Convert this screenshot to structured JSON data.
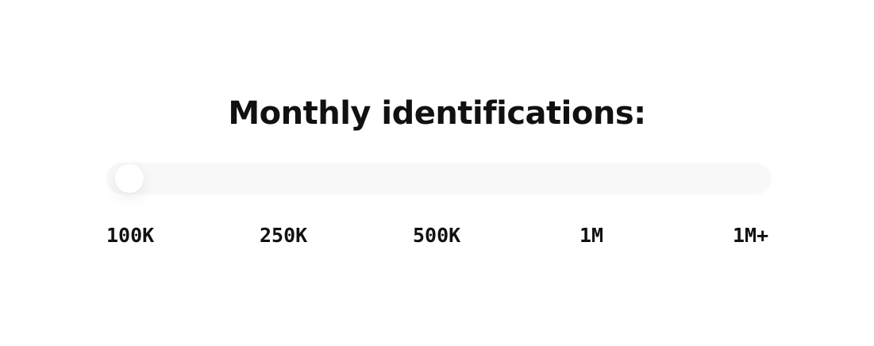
{
  "title": "Monthly identifications:",
  "slider": {
    "value_index": 0,
    "selected": "100K",
    "track_color": "#f8f8f8",
    "thumb_color": "#ffffff",
    "labels": [
      "100K",
      "250K",
      "500K",
      "1M",
      "1M+"
    ]
  }
}
